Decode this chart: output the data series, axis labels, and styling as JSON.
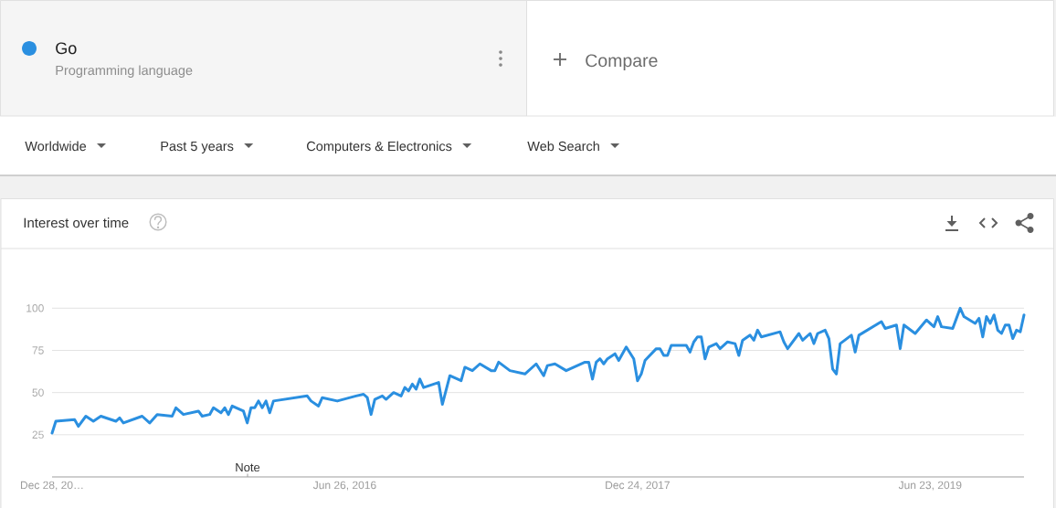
{
  "chart_data": {
    "type": "line",
    "title": "Interest over time",
    "annotations": [
      "Programming language",
      "Compare",
      "Worldwide",
      "Past 5 years",
      "Computers & Electronics",
      "Web Search",
      "Note"
    ],
    "x": [
      "2014-12-28",
      "2015-01-04",
      "2015-02-08",
      "2015-02-15",
      "2015-03-01",
      "2015-03-15",
      "2015-03-29",
      "2015-04-26",
      "2015-05-03",
      "2015-05-10",
      "2015-06-14",
      "2015-06-28",
      "2015-07-12",
      "2015-08-09",
      "2015-08-16",
      "2015-08-30",
      "2015-09-27",
      "2015-10-04",
      "2015-10-18",
      "2015-10-25",
      "2015-11-08",
      "2015-11-15",
      "2015-11-22",
      "2015-11-29",
      "2015-12-20",
      "2015-12-27",
      "2016-01-03",
      "2016-01-10",
      "2016-01-17",
      "2016-01-24",
      "2016-01-31",
      "2016-02-07",
      "2016-02-14",
      "2016-04-17",
      "2016-04-24",
      "2016-05-08",
      "2016-05-15",
      "2016-06-12",
      "2016-07-17",
      "2016-07-31",
      "2016-08-07",
      "2016-08-14",
      "2016-08-21",
      "2016-09-04",
      "2016-09-11",
      "2016-09-25",
      "2016-10-09",
      "2016-10-16",
      "2016-10-23",
      "2016-10-30",
      "2016-11-06",
      "2016-11-13",
      "2016-11-20",
      "2016-12-18",
      "2016-12-25",
      "2017-01-08",
      "2017-01-29",
      "2017-02-05",
      "2017-02-19",
      "2017-03-05",
      "2017-03-26",
      "2017-04-02",
      "2017-04-09",
      "2017-04-30",
      "2017-05-28",
      "2017-06-18",
      "2017-07-02",
      "2017-07-09",
      "2017-07-23",
      "2017-08-13",
      "2017-09-17",
      "2017-09-24",
      "2017-10-01",
      "2017-10-08",
      "2017-10-15",
      "2017-10-22",
      "2017-10-29",
      "2017-11-12",
      "2017-11-19",
      "2017-12-03",
      "2017-12-17",
      "2017-12-24",
      "2017-12-31",
      "2018-01-07",
      "2018-01-28",
      "2018-02-04",
      "2018-02-11",
      "2018-02-18",
      "2018-02-25",
      "2018-03-25",
      "2018-04-01",
      "2018-04-08",
      "2018-04-15",
      "2018-04-22",
      "2018-04-29",
      "2018-05-06",
      "2018-05-20",
      "2018-05-27",
      "2018-06-10",
      "2018-06-24",
      "2018-07-01",
      "2018-07-08",
      "2018-07-22",
      "2018-07-29",
      "2018-08-05",
      "2018-08-12",
      "2018-09-16",
      "2018-09-23",
      "2018-09-30",
      "2018-10-21",
      "2018-10-28",
      "2018-11-11",
      "2018-11-18",
      "2018-11-25",
      "2018-12-09",
      "2018-12-16",
      "2018-12-23",
      "2018-12-30",
      "2019-01-06",
      "2019-01-27",
      "2019-02-03",
      "2019-02-10",
      "2019-03-24",
      "2019-03-31",
      "2019-04-21",
      "2019-04-28",
      "2019-05-05",
      "2019-05-26",
      "2019-06-16",
      "2019-06-30",
      "2019-07-07",
      "2019-07-14",
      "2019-08-04",
      "2019-08-11",
      "2019-08-18",
      "2019-08-25",
      "2019-09-15",
      "2019-09-22",
      "2019-09-29",
      "2019-10-06",
      "2019-10-13",
      "2019-10-20",
      "2019-10-27",
      "2019-11-03",
      "2019-11-10",
      "2019-11-17",
      "2019-11-24",
      "2019-12-01",
      "2019-12-08",
      "2019-12-15"
    ],
    "series": [
      {
        "name": "Go",
        "color": "#2a8fe0",
        "values": [
          26,
          33,
          34,
          30,
          36,
          33,
          36,
          33,
          35,
          32,
          36,
          32,
          37,
          36,
          41,
          37,
          39,
          36,
          37,
          41,
          38,
          41,
          37,
          42,
          39,
          32,
          41,
          41,
          45,
          41,
          45,
          38,
          45,
          48,
          45,
          42,
          47,
          45,
          48,
          49,
          47,
          37,
          46,
          48,
          46,
          50,
          48,
          53,
          51,
          55,
          52,
          58,
          53,
          56,
          43,
          60,
          57,
          65,
          63,
          67,
          63,
          63,
          68,
          63,
          61,
          67,
          60,
          66,
          67,
          63,
          68,
          68,
          58,
          68,
          70,
          67,
          70,
          73,
          69,
          77,
          70,
          57,
          61,
          69,
          76,
          76,
          72,
          72,
          78,
          78,
          74,
          80,
          83,
          83,
          70,
          77,
          79,
          76,
          80,
          79,
          72,
          81,
          84,
          81,
          87,
          83,
          86,
          80,
          76,
          85,
          81,
          85,
          79,
          85,
          87,
          82,
          64,
          61,
          79,
          84,
          74,
          84,
          92,
          88,
          90,
          76,
          90,
          85,
          93,
          89,
          95,
          89,
          88,
          94,
          100,
          95,
          91,
          94,
          83,
          95,
          91,
          96,
          87,
          85,
          90,
          90,
          82,
          87,
          86,
          96
        ]
      }
    ],
    "xlim": [
      "2014-12-28",
      "2019-12-15"
    ],
    "ylim": [
      0,
      100
    ],
    "xticks": [
      {
        "value": "2014-12-28",
        "label": "Dec 28, 20…"
      },
      {
        "value": "2016-06-26",
        "label": "Jun 26, 2016"
      },
      {
        "value": "2017-12-24",
        "label": "Dec 24, 2017"
      },
      {
        "value": "2019-06-23",
        "label": "Jun 23, 2019"
      }
    ],
    "yticks": [
      25,
      50,
      75,
      100
    ],
    "grid": "y",
    "legend": "top left",
    "line_style": "solid"
  }
}
